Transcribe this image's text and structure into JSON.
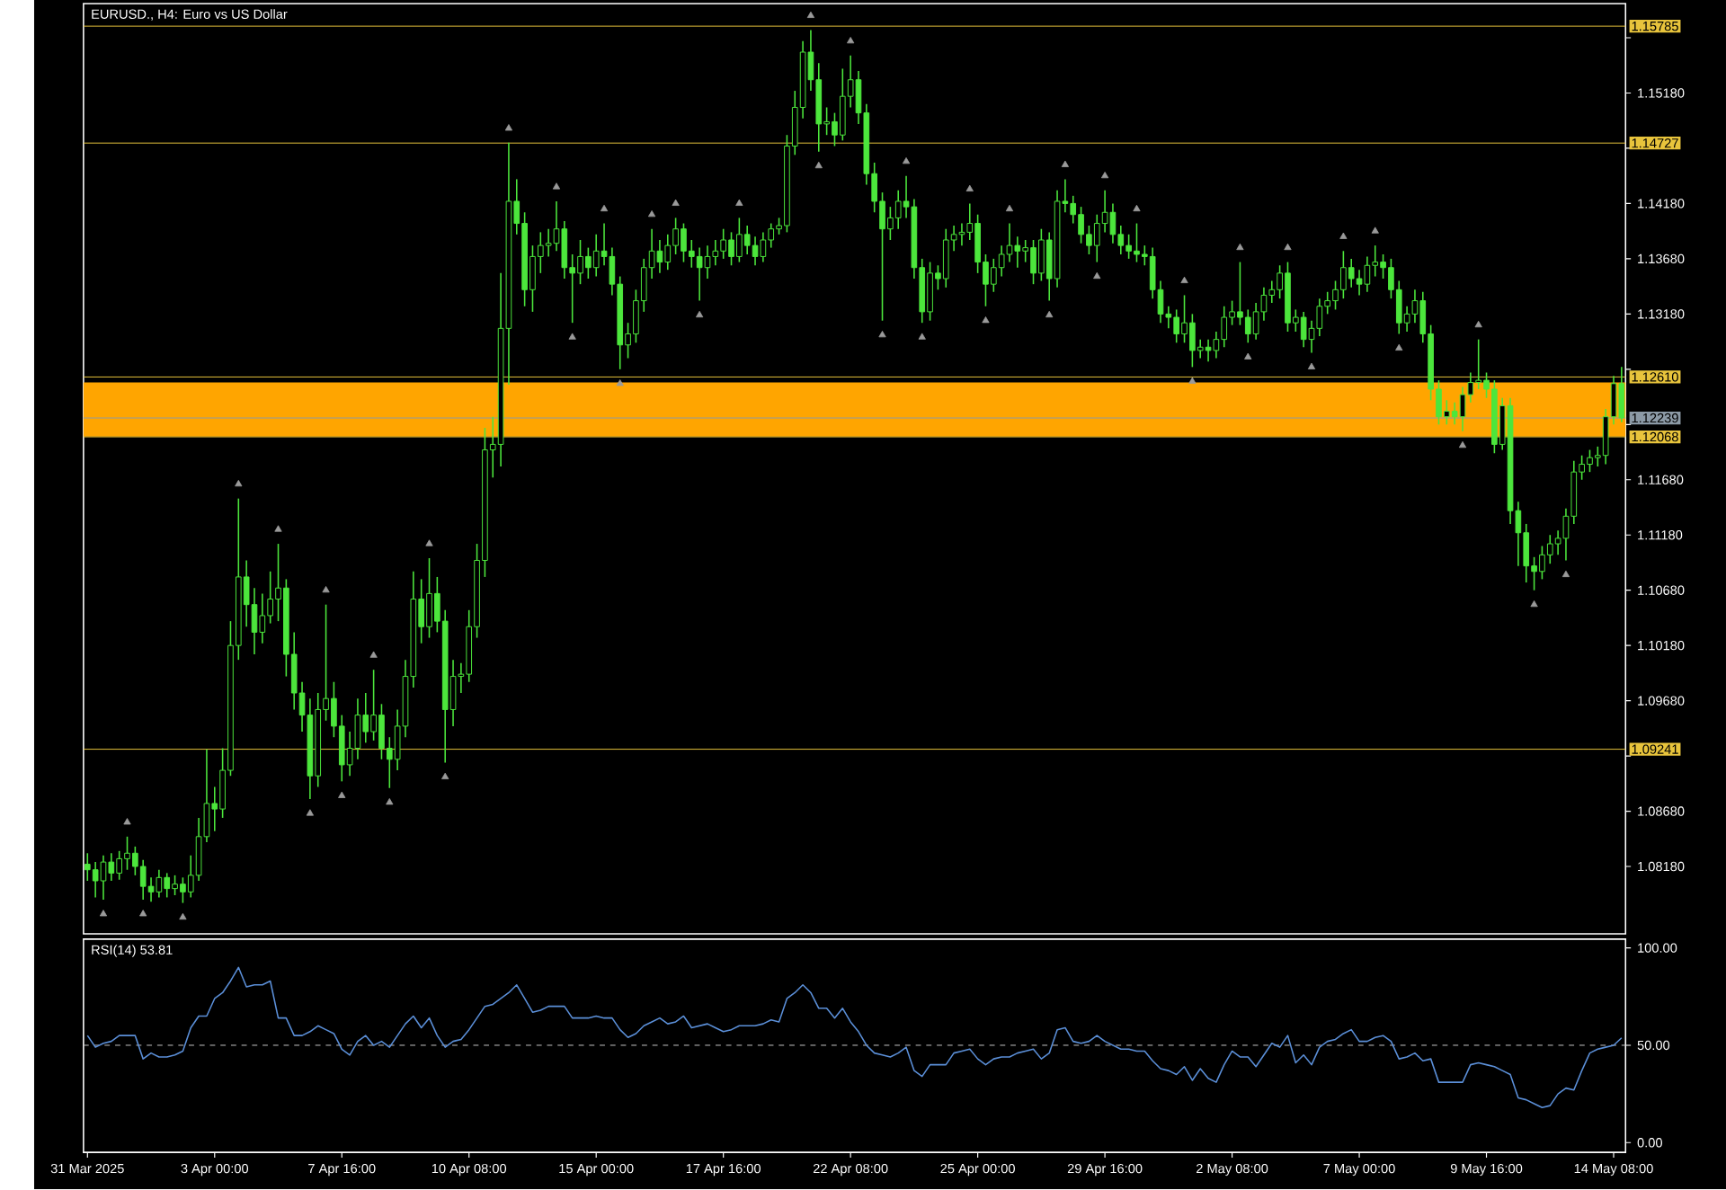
{
  "chart_data": [
    {
      "type": "candlestick",
      "title": "EURUSD., H4: Euro vs US Dollar",
      "color": "#4ce63c",
      "ohlc": [
        [
          1.082,
          1.083,
          1.0805,
          1.0815
        ],
        [
          1.0815,
          1.0822,
          1.079,
          1.0805
        ],
        [
          1.0805,
          1.0828,
          1.0788,
          1.0822
        ],
        [
          1.0822,
          1.083,
          1.0805,
          1.0812
        ],
        [
          1.0812,
          1.0832,
          1.0806,
          1.0825
        ],
        [
          1.0825,
          1.0845,
          1.0815,
          1.083
        ],
        [
          1.083,
          1.0836,
          1.081,
          1.0818
        ],
        [
          1.0818,
          1.0824,
          1.0788,
          1.08
        ],
        [
          1.08,
          1.0808,
          1.0786,
          1.0795
        ],
        [
          1.0795,
          1.0815,
          1.079,
          1.0808
        ],
        [
          1.0808,
          1.0812,
          1.079,
          1.0798
        ],
        [
          1.0798,
          1.081,
          1.0792,
          1.0802
        ],
        [
          1.0802,
          1.0808,
          1.0785,
          1.0795
        ],
        [
          1.0795,
          1.0828,
          1.079,
          1.081
        ],
        [
          1.081,
          1.0862,
          1.0805,
          1.0845
        ],
        [
          1.0845,
          1.0924,
          1.084,
          1.0875
        ],
        [
          1.0875,
          1.089,
          1.085,
          1.087
        ],
        [
          1.087,
          1.0925,
          1.0862,
          1.0905
        ],
        [
          1.0905,
          1.104,
          1.09,
          1.1018
        ],
        [
          1.1018,
          1.1151,
          1.1005,
          1.108
        ],
        [
          1.108,
          1.1095,
          1.1035,
          1.1055
        ],
        [
          1.1055,
          1.107,
          1.101,
          1.103
        ],
        [
          1.103,
          1.1065,
          1.102,
          1.1045
        ],
        [
          1.1045,
          1.1085,
          1.1038,
          1.106
        ],
        [
          1.106,
          1.111,
          1.104,
          1.107
        ],
        [
          1.107,
          1.1078,
          1.099,
          1.101
        ],
        [
          1.101,
          1.103,
          1.096,
          1.0975
        ],
        [
          1.0975,
          1.0985,
          1.094,
          1.0955
        ],
        [
          1.0955,
          1.097,
          1.0879,
          1.09
        ],
        [
          1.09,
          1.0975,
          1.089,
          1.096
        ],
        [
          1.096,
          1.1055,
          1.095,
          1.097
        ],
        [
          1.097,
          1.0985,
          1.0935,
          1.0945
        ],
        [
          1.0945,
          1.0955,
          1.0895,
          1.091
        ],
        [
          1.091,
          1.094,
          1.09,
          1.0925
        ],
        [
          1.0925,
          1.097,
          1.0915,
          1.0955
        ],
        [
          1.0955,
          1.0975,
          1.093,
          1.094
        ],
        [
          1.094,
          1.0996,
          1.0932,
          1.0955
        ],
        [
          1.0955,
          1.0965,
          1.0915,
          1.0925
        ],
        [
          1.0925,
          1.0935,
          1.0889,
          1.0915
        ],
        [
          1.0915,
          1.096,
          1.0905,
          1.0945
        ],
        [
          1.0945,
          1.1005,
          1.0935,
          1.099
        ],
        [
          1.099,
          1.1085,
          1.098,
          1.106
        ],
        [
          1.106,
          1.1078,
          1.102,
          1.1035
        ],
        [
          1.1035,
          1.1097,
          1.1025,
          1.1065
        ],
        [
          1.1065,
          1.108,
          1.103,
          1.104
        ],
        [
          1.104,
          1.105,
          1.0912,
          1.096
        ],
        [
          1.096,
          1.1005,
          1.0945,
          1.099
        ],
        [
          1.099,
          1.1002,
          1.0975,
          1.0992
        ],
        [
          1.0992,
          1.105,
          1.0985,
          1.1035
        ],
        [
          1.1035,
          1.111,
          1.1025,
          1.1095
        ],
        [
          1.1095,
          1.1215,
          1.108,
          1.1195
        ],
        [
          1.1195,
          1.1225,
          1.117,
          1.12
        ],
        [
          1.12,
          1.1355,
          1.118,
          1.1305
        ],
        [
          1.1305,
          1.1473,
          1.1254,
          1.142
        ],
        [
          1.142,
          1.144,
          1.139,
          1.14
        ],
        [
          1.14,
          1.141,
          1.1325,
          1.134
        ],
        [
          1.134,
          1.138,
          1.132,
          1.137
        ],
        [
          1.137,
          1.1392,
          1.1355,
          1.138
        ],
        [
          1.138,
          1.1395,
          1.137,
          1.1382
        ],
        [
          1.1382,
          1.142,
          1.1375,
          1.1395
        ],
        [
          1.1395,
          1.1402,
          1.135,
          1.136
        ],
        [
          1.136,
          1.1372,
          1.131,
          1.1355
        ],
        [
          1.1355,
          1.1385,
          1.1345,
          1.137
        ],
        [
          1.137,
          1.1378,
          1.135,
          1.136
        ],
        [
          1.136,
          1.139,
          1.1352,
          1.1375
        ],
        [
          1.1375,
          1.14,
          1.1362,
          1.137
        ],
        [
          1.137,
          1.1378,
          1.1335,
          1.1345
        ],
        [
          1.1345,
          1.1352,
          1.1268,
          1.129
        ],
        [
          1.129,
          1.131,
          1.1278,
          1.13
        ],
        [
          1.13,
          1.134,
          1.1292,
          1.133
        ],
        [
          1.133,
          1.1368,
          1.132,
          1.136
        ],
        [
          1.136,
          1.1395,
          1.135,
          1.1375
        ],
        [
          1.1375,
          1.1385,
          1.1355,
          1.1365
        ],
        [
          1.1365,
          1.139,
          1.1358,
          1.138
        ],
        [
          1.138,
          1.1405,
          1.1372,
          1.1395
        ],
        [
          1.1395,
          1.14,
          1.1365,
          1.1375
        ],
        [
          1.1375,
          1.1385,
          1.136,
          1.137
        ],
        [
          1.137,
          1.1378,
          1.133,
          1.136
        ],
        [
          1.136,
          1.138,
          1.135,
          1.137
        ],
        [
          1.137,
          1.1385,
          1.1362,
          1.1375
        ],
        [
          1.1375,
          1.1395,
          1.1368,
          1.1385
        ],
        [
          1.1385,
          1.1392,
          1.1362,
          1.137
        ],
        [
          1.137,
          1.1405,
          1.1365,
          1.139
        ],
        [
          1.139,
          1.1398,
          1.1372,
          1.138
        ],
        [
          1.138,
          1.1388,
          1.1362,
          1.137
        ],
        [
          1.137,
          1.1392,
          1.1365,
          1.1385
        ],
        [
          1.1385,
          1.14,
          1.1378,
          1.1395
        ],
        [
          1.1395,
          1.1405,
          1.139,
          1.1398
        ],
        [
          1.1398,
          1.148,
          1.1392,
          1.147
        ],
        [
          1.147,
          1.152,
          1.1462,
          1.1505
        ],
        [
          1.1505,
          1.1565,
          1.1495,
          1.1555
        ],
        [
          1.1555,
          1.1575,
          1.152,
          1.153
        ],
        [
          1.153,
          1.1545,
          1.1465,
          1.149
        ],
        [
          1.149,
          1.1505,
          1.148,
          1.1492
        ],
        [
          1.1492,
          1.15,
          1.147,
          1.148
        ],
        [
          1.148,
          1.154,
          1.1475,
          1.1515
        ],
        [
          1.1515,
          1.1552,
          1.1505,
          1.153
        ],
        [
          1.153,
          1.1538,
          1.149,
          1.15
        ],
        [
          1.15,
          1.1508,
          1.1435,
          1.1445
        ],
        [
          1.1445,
          1.1455,
          1.141,
          1.142
        ],
        [
          1.142,
          1.1428,
          1.1312,
          1.1395
        ],
        [
          1.1395,
          1.1415,
          1.1385,
          1.1405
        ],
        [
          1.1405,
          1.143,
          1.1395,
          1.142
        ],
        [
          1.142,
          1.1443,
          1.1405,
          1.1415
        ],
        [
          1.1415,
          1.1422,
          1.135,
          1.136
        ],
        [
          1.136,
          1.1368,
          1.131,
          1.132
        ],
        [
          1.132,
          1.1365,
          1.1312,
          1.1355
        ],
        [
          1.1355,
          1.1362,
          1.134,
          1.135
        ],
        [
          1.135,
          1.1395,
          1.1342,
          1.1385
        ],
        [
          1.1385,
          1.1398,
          1.1375,
          1.139
        ],
        [
          1.139,
          1.14,
          1.138,
          1.1392
        ],
        [
          1.1392,
          1.1418,
          1.1385,
          1.14
        ],
        [
          1.14,
          1.1408,
          1.1355,
          1.1365
        ],
        [
          1.1365,
          1.1372,
          1.1325,
          1.1345
        ],
        [
          1.1345,
          1.1368,
          1.1338,
          1.136
        ],
        [
          1.136,
          1.138,
          1.1352,
          1.1372
        ],
        [
          1.1372,
          1.14,
          1.1365,
          1.138
        ],
        [
          1.138,
          1.1388,
          1.136,
          1.1375
        ],
        [
          1.1375,
          1.1385,
          1.1365,
          1.1378
        ],
        [
          1.1378,
          1.1385,
          1.1345,
          1.1355
        ],
        [
          1.1355,
          1.1395,
          1.1348,
          1.1385
        ],
        [
          1.1385,
          1.1392,
          1.133,
          1.135
        ],
        [
          1.135,
          1.143,
          1.1342,
          1.142
        ],
        [
          1.142,
          1.144,
          1.141,
          1.1418
        ],
        [
          1.1418,
          1.1425,
          1.14,
          1.1408
        ],
        [
          1.1408,
          1.1415,
          1.1382,
          1.139
        ],
        [
          1.139,
          1.1398,
          1.1372,
          1.138
        ],
        [
          1.138,
          1.1408,
          1.1365,
          1.14
        ],
        [
          1.14,
          1.143,
          1.1392,
          1.141
        ],
        [
          1.141,
          1.1418,
          1.1382,
          1.139
        ],
        [
          1.139,
          1.1398,
          1.1372,
          1.138
        ],
        [
          1.138,
          1.139,
          1.1368,
          1.1375
        ],
        [
          1.1375,
          1.14,
          1.1365,
          1.1372
        ],
        [
          1.1372,
          1.138,
          1.1362,
          1.137
        ],
        [
          1.137,
          1.1378,
          1.1332,
          1.134
        ],
        [
          1.134,
          1.1348,
          1.131,
          1.1318
        ],
        [
          1.1318,
          1.1325,
          1.1305,
          1.1315
        ],
        [
          1.1315,
          1.1322,
          1.1292,
          1.13
        ],
        [
          1.13,
          1.1335,
          1.1292,
          1.131
        ],
        [
          1.131,
          1.1318,
          1.127,
          1.1285
        ],
        [
          1.1285,
          1.1295,
          1.1278,
          1.1288
        ],
        [
          1.1288,
          1.1295,
          1.1275,
          1.1285
        ],
        [
          1.1285,
          1.1302,
          1.1278,
          1.1295
        ],
        [
          1.1295,
          1.1325,
          1.1288,
          1.1315
        ],
        [
          1.1315,
          1.133,
          1.1308,
          1.132
        ],
        [
          1.132,
          1.1365,
          1.1308,
          1.1315
        ],
        [
          1.1315,
          1.1322,
          1.1292,
          1.13
        ],
        [
          1.13,
          1.1328,
          1.1295,
          1.132
        ],
        [
          1.132,
          1.1342,
          1.1312,
          1.1335
        ],
        [
          1.1335,
          1.1348,
          1.1328,
          1.134
        ],
        [
          1.134,
          1.1362,
          1.1332,
          1.1355
        ],
        [
          1.1355,
          1.1365,
          1.1302,
          1.131
        ],
        [
          1.131,
          1.1322,
          1.1302,
          1.1315
        ],
        [
          1.1315,
          1.132,
          1.1288,
          1.1295
        ],
        [
          1.1295,
          1.1312,
          1.1283,
          1.1305
        ],
        [
          1.1305,
          1.1332,
          1.1298,
          1.1325
        ],
        [
          1.1325,
          1.1338,
          1.1318,
          1.133
        ],
        [
          1.133,
          1.1348,
          1.1322,
          1.134
        ],
        [
          1.134,
          1.1375,
          1.1332,
          1.136
        ],
        [
          1.136,
          1.1368,
          1.1342,
          1.135
        ],
        [
          1.135,
          1.1358,
          1.1335,
          1.1345
        ],
        [
          1.1345,
          1.137,
          1.1338,
          1.1362
        ],
        [
          1.1362,
          1.138,
          1.1352,
          1.1365
        ],
        [
          1.1365,
          1.1372,
          1.135,
          1.136
        ],
        [
          1.136,
          1.1368,
          1.1332,
          1.134
        ],
        [
          1.134,
          1.1348,
          1.13,
          1.131
        ],
        [
          1.131,
          1.1325,
          1.1302,
          1.1318
        ],
        [
          1.1318,
          1.134,
          1.131,
          1.133
        ],
        [
          1.133,
          1.1338,
          1.1292,
          1.13
        ],
        [
          1.13,
          1.1308,
          1.124,
          1.125
        ],
        [
          1.125,
          1.1258,
          1.1218,
          1.1225
        ],
        [
          1.1225,
          1.124,
          1.1218,
          1.123
        ],
        [
          1.123,
          1.1238,
          1.1218,
          1.1225
        ],
        [
          1.1225,
          1.1252,
          1.1212,
          1.1245
        ],
        [
          1.1245,
          1.1265,
          1.1238,
          1.1256
        ],
        [
          1.1256,
          1.1295,
          1.125,
          1.1258
        ],
        [
          1.1258,
          1.1265,
          1.1242,
          1.125
        ],
        [
          1.125,
          1.1258,
          1.1192,
          1.12
        ],
        [
          1.12,
          1.1242,
          1.1195,
          1.1235
        ],
        [
          1.1235,
          1.1242,
          1.1128,
          1.114
        ],
        [
          1.114,
          1.1148,
          1.109,
          1.112
        ],
        [
          1.112,
          1.1128,
          1.1075,
          1.109
        ],
        [
          1.109,
          1.1098,
          1.1068,
          1.1085
        ],
        [
          1.1085,
          1.1108,
          1.1078,
          1.11
        ],
        [
          1.11,
          1.1118,
          1.1092,
          1.111
        ],
        [
          1.111,
          1.1122,
          1.11,
          1.1115
        ],
        [
          1.1115,
          1.1142,
          1.1095,
          1.1135
        ],
        [
          1.1135,
          1.1185,
          1.1128,
          1.1175
        ],
        [
          1.1175,
          1.119,
          1.1168,
          1.1182
        ],
        [
          1.1182,
          1.1195,
          1.1175,
          1.1188
        ],
        [
          1.1188,
          1.1198,
          1.118,
          1.119
        ],
        [
          1.119,
          1.1232,
          1.1182,
          1.1225
        ],
        [
          1.1225,
          1.1262,
          1.1218,
          1.1255
        ],
        [
          1.1255,
          1.127,
          1.122,
          1.1224
        ]
      ],
      "series": [
        {
          "type": "scatter",
          "marker": "triangle",
          "color": "#9a9a9a",
          "values": [
            null,
            null,
            null,
            null,
            null,
            1.0858,
            null,
            null,
            null,
            null,
            null,
            null,
            null,
            null,
            null,
            null,
            null,
            null,
            null,
            1.1164,
            null,
            null,
            null,
            null,
            1.1123,
            null,
            null,
            null,
            null,
            null,
            1.1068,
            null,
            null,
            null,
            null,
            null,
            1.1009,
            null,
            null,
            null,
            null,
            null,
            null,
            1.111,
            null,
            null,
            null,
            null,
            null,
            null,
            null,
            null,
            null,
            1.1486,
            null,
            null,
            null,
            null,
            null,
            1.1433,
            null,
            null,
            null,
            null,
            null,
            1.1413,
            null,
            null,
            null,
            null,
            null,
            1.1408,
            null,
            null,
            1.1418,
            null,
            null,
            null,
            null,
            null,
            null,
            null,
            1.1418,
            null,
            null,
            null,
            null,
            null,
            null,
            null,
            null,
            1.1588,
            null,
            null,
            null,
            null,
            1.1565,
            null,
            null,
            null,
            null,
            null,
            null,
            1.1456,
            null,
            null,
            null,
            null,
            null,
            null,
            null,
            1.1431,
            null,
            null,
            null,
            null,
            1.1413,
            null,
            null,
            null,
            null,
            null,
            null,
            1.1453,
            null,
            null,
            null,
            null,
            1.1443,
            null,
            null,
            null,
            1.1413,
            null,
            null,
            null,
            null,
            null,
            1.1348,
            null,
            null,
            null,
            null,
            null,
            null,
            1.1378,
            null,
            null,
            null,
            null,
            null,
            1.1378,
            null,
            null,
            null,
            null,
            null,
            null,
            1.1388,
            null,
            null,
            null,
            1.1393,
            null,
            null,
            null,
            null,
            null,
            null,
            null,
            null,
            null,
            null,
            null,
            null,
            1.1308,
            null,
            null,
            null,
            null,
            null,
            null,
            null,
            null,
            null,
            null,
            null,
            null,
            null,
            null,
            null,
            null,
            null,
            null
          ]
        },
        {
          "type": "scatter",
          "marker": "triangle",
          "color": "#9a9a9a",
          "values": [
            null,
            null,
            1.0775,
            null,
            null,
            null,
            null,
            1.0775,
            null,
            null,
            null,
            null,
            1.0772,
            null,
            null,
            null,
            null,
            null,
            null,
            null,
            null,
            null,
            null,
            null,
            null,
            null,
            null,
            null,
            1.0866,
            null,
            null,
            null,
            1.0882,
            null,
            null,
            null,
            null,
            null,
            1.0876,
            null,
            null,
            null,
            null,
            null,
            null,
            1.0899,
            null,
            null,
            null,
            null,
            null,
            null,
            null,
            null,
            null,
            null,
            null,
            null,
            null,
            null,
            null,
            1.1297,
            null,
            null,
            null,
            null,
            null,
            1.1255,
            null,
            null,
            null,
            null,
            null,
            null,
            null,
            null,
            null,
            1.1317,
            null,
            null,
            null,
            null,
            null,
            null,
            null,
            null,
            null,
            null,
            null,
            null,
            null,
            null,
            1.1452,
            null,
            null,
            null,
            null,
            null,
            null,
            null,
            1.1299,
            null,
            null,
            null,
            null,
            1.1297,
            null,
            null,
            null,
            null,
            null,
            null,
            null,
            1.1312,
            null,
            null,
            null,
            null,
            null,
            null,
            null,
            1.1317,
            null,
            null,
            null,
            null,
            null,
            1.1352,
            null,
            null,
            null,
            null,
            null,
            null,
            null,
            null,
            null,
            null,
            null,
            1.1257,
            null,
            null,
            null,
            null,
            null,
            null,
            1.1279,
            null,
            null,
            null,
            null,
            null,
            null,
            null,
            1.127,
            null,
            null,
            null,
            null,
            null,
            null,
            null,
            null,
            null,
            null,
            1.1287,
            null,
            null,
            null,
            null,
            null,
            null,
            null,
            1.1199,
            null,
            null,
            null,
            null,
            null,
            null,
            null,
            null,
            1.1055,
            null,
            null,
            null,
            1.1082,
            null,
            null,
            null,
            null,
            null,
            null,
            null
          ]
        }
      ],
      "ylim": [
        1.0757,
        1.1599
      ],
      "yticks": [
        {
          "value": 1.0818,
          "label": "1.08180"
        },
        {
          "value": 1.0868,
          "label": "1.08680"
        },
        {
          "value": 1.0918,
          "label": null
        },
        {
          "value": 1.0968,
          "label": "1.09680"
        },
        {
          "value": 1.1018,
          "label": "1.10180"
        },
        {
          "value": 1.1068,
          "label": "1.10680"
        },
        {
          "value": 1.1118,
          "label": "1.11180"
        },
        {
          "value": 1.1168,
          "label": "1.11680"
        },
        {
          "value": 1.1218,
          "label": null
        },
        {
          "value": 1.1268,
          "label": null
        },
        {
          "value": 1.1318,
          "label": "1.13180"
        },
        {
          "value": 1.1368,
          "label": "1.13680"
        },
        {
          "value": 1.1418,
          "label": "1.14180"
        },
        {
          "value": 1.1468,
          "label": null
        },
        {
          "value": 1.1518,
          "label": "1.15180"
        },
        {
          "value": 1.1568,
          "label": null
        }
      ],
      "tick_labels": "y",
      "ref_lines": [
        {
          "axis": "y",
          "value": 1.15785,
          "label": "1.15785",
          "color": "#e8c43c"
        },
        {
          "axis": "y",
          "value": 1.14727,
          "label": "1.14727",
          "color": "#e8c43c"
        },
        {
          "axis": "y",
          "value": 1.1261,
          "label": "1.12610",
          "color": "#e8c43c"
        },
        {
          "axis": "y",
          "value": 1.12239,
          "label": "1.12239",
          "color": "#8c9aa6"
        },
        {
          "axis": "y",
          "value": 1.12068,
          "label": "1.12068",
          "color": "#e8c43c"
        },
        {
          "axis": "y",
          "value": 1.09241,
          "label": "1.09241",
          "color": "#e8c43c"
        }
      ],
      "bands": [
        {
          "axis": "y",
          "from": 1.1207,
          "to": 1.1256,
          "color": "#ffa500"
        }
      ]
    },
    {
      "type": "line",
      "title": "RSI(14) 53.81",
      "categories": [
        "31 Mar 2025",
        null,
        null,
        null,
        null,
        null,
        null,
        null,
        null,
        null,
        null,
        null,
        null,
        null,
        null,
        null,
        "3 Apr 00:00",
        null,
        null,
        null,
        null,
        null,
        null,
        null,
        null,
        null,
        null,
        null,
        null,
        null,
        null,
        null,
        "7 Apr 16:00",
        null,
        null,
        null,
        null,
        null,
        null,
        null,
        null,
        null,
        null,
        null,
        null,
        null,
        null,
        null,
        "10 Apr 08:00",
        null,
        null,
        null,
        null,
        null,
        null,
        null,
        null,
        null,
        null,
        null,
        null,
        null,
        null,
        null,
        "15 Apr 00:00",
        null,
        null,
        null,
        null,
        null,
        null,
        null,
        null,
        null,
        null,
        null,
        null,
        null,
        null,
        null,
        "17 Apr 16:00",
        null,
        null,
        null,
        null,
        null,
        null,
        null,
        null,
        null,
        null,
        null,
        null,
        null,
        null,
        null,
        "22 Apr 08:00",
        null,
        null,
        null,
        null,
        null,
        null,
        null,
        null,
        null,
        null,
        null,
        null,
        null,
        null,
        null,
        "25 Apr 00:00",
        null,
        null,
        null,
        null,
        null,
        null,
        null,
        null,
        null,
        null,
        null,
        null,
        null,
        null,
        null,
        "29 Apr 16:00",
        null,
        null,
        null,
        null,
        null,
        null,
        null,
        null,
        null,
        null,
        null,
        null,
        null,
        null,
        null,
        "2 May 08:00",
        null,
        null,
        null,
        null,
        null,
        null,
        null,
        null,
        null,
        null,
        null,
        null,
        null,
        null,
        null,
        "7 May 00:00",
        null,
        null,
        null,
        null,
        null,
        null,
        null,
        null,
        null,
        null,
        null,
        null,
        null,
        null,
        null,
        "9 May 16:00",
        null,
        null,
        null,
        null,
        null,
        null,
        null,
        null,
        null,
        null,
        null,
        null,
        null,
        null,
        null,
        "14 May 08:00",
        null
      ],
      "series": [
        {
          "color": "#5b8fd8",
          "values": [
            55,
            49,
            51,
            52,
            55,
            55,
            55,
            43,
            46,
            44,
            44,
            45,
            47,
            59,
            65,
            65,
            74,
            77,
            83,
            90,
            80,
            81,
            81,
            83,
            64,
            64,
            55,
            55,
            57,
            60,
            58,
            56,
            48,
            45,
            52,
            55,
            50,
            52,
            49,
            55,
            61,
            65,
            59,
            64,
            55,
            49,
            52,
            53,
            58,
            64,
            70,
            71,
            74,
            77,
            81,
            74,
            67,
            68,
            70,
            70,
            70,
            64,
            64,
            64,
            65,
            64,
            64,
            58,
            54,
            56,
            60,
            62,
            64,
            61,
            62,
            65,
            59,
            60,
            61,
            59,
            57,
            58,
            60,
            60,
            60,
            61,
            63,
            62,
            74,
            77,
            81,
            77,
            69,
            69,
            64,
            69,
            62,
            57,
            50,
            46,
            45,
            44,
            46,
            49,
            37,
            34,
            40,
            40,
            40,
            46,
            47,
            48,
            43,
            40,
            43,
            44,
            44,
            46,
            47,
            48,
            43,
            46,
            58,
            59,
            52,
            51,
            52,
            55,
            52,
            50,
            48,
            48,
            47,
            47,
            42,
            38,
            37,
            35,
            39,
            32,
            38,
            33,
            31,
            40,
            47,
            44,
            44,
            39,
            45,
            51,
            49,
            55,
            41,
            45,
            40,
            49,
            52,
            53,
            56,
            58,
            52,
            52,
            54,
            55,
            52,
            43,
            44,
            46,
            42,
            43,
            31,
            31,
            31,
            31,
            40,
            41,
            40,
            39,
            37,
            35,
            23,
            22,
            20,
            18,
            19,
            25,
            28,
            27,
            37,
            46,
            48,
            49,
            50,
            53.81
          ]
        }
      ],
      "ylim": [
        -5,
        104.5
      ],
      "yticks": [
        {
          "value": 0,
          "label": "0.00"
        },
        {
          "value": 50,
          "label": "50.00"
        },
        {
          "value": 100,
          "label": "100.00"
        }
      ],
      "ref_lines": [
        {
          "axis": "y",
          "value": 50,
          "color": "#c8c8c8",
          "line_style": "dashed"
        }
      ]
    }
  ]
}
